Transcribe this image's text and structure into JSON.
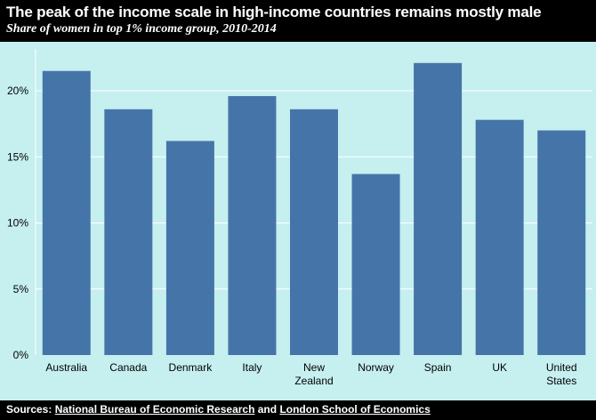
{
  "header": {
    "title": "The peak of the income scale in high-income countries remains mostly male",
    "subtitle": "Share of women in top 1% income group, 2010-2014"
  },
  "footer": {
    "prefix": "Sources: ",
    "source1": "National Bureau of Economic Research",
    "conjunction": " and ",
    "source2": "London School of Economics"
  },
  "colors": {
    "bar": "#4575a8",
    "background": "#c6eff0",
    "grid": "#ffffff"
  },
  "chart_data": {
    "type": "bar",
    "title": "The peak of the income scale in high-income countries remains mostly male",
    "subtitle": "Share of women in top 1% income group, 2010-2014",
    "xlabel": "",
    "ylabel": "",
    "categories": [
      "Australia",
      "Canada",
      "Denmark",
      "Italy",
      "New Zealand",
      "Norway",
      "Spain",
      "UK",
      "United States"
    ],
    "category_lines": [
      [
        "Australia"
      ],
      [
        "Canada"
      ],
      [
        "Denmark"
      ],
      [
        "Italy"
      ],
      [
        "New",
        "Zealand"
      ],
      [
        "Norway"
      ],
      [
        "Spain"
      ],
      [
        "UK"
      ],
      [
        "United",
        "States"
      ]
    ],
    "values": [
      21.5,
      18.6,
      16.2,
      19.6,
      18.6,
      13.7,
      22.1,
      17.8,
      17.0
    ],
    "ylim": [
      0,
      23
    ],
    "yticks": [
      0,
      5,
      10,
      15,
      20
    ],
    "ytick_labels": [
      "0%",
      "5%",
      "10%",
      "15%",
      "20%"
    ],
    "grid": true,
    "legend": "none"
  }
}
